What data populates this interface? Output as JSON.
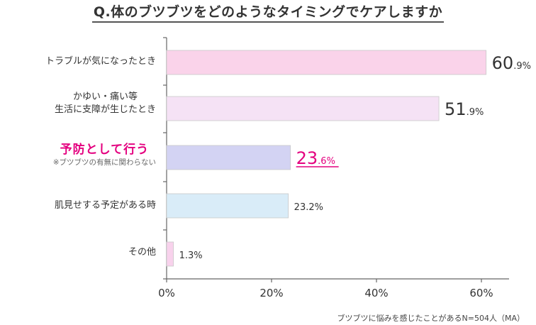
{
  "title": "Q.体のブツブツをどのようなタイミングでケアしますか",
  "footnote": "ブツブツに悩みを感じたことがあるN=504人（MA）",
  "colors": {
    "bar_0": "#fad3ea",
    "bar_1": "#f5e2f5",
    "bar_2": "#d3d3f3",
    "bar_3": "#d9ecf8",
    "bar_4": "#f8d2ec",
    "highlight": "#e4007f",
    "axis": "#666666",
    "text": "#333333"
  },
  "chart_data": {
    "type": "bar",
    "orientation": "horizontal",
    "title": "Q.体のブツブツをどのようなタイミングでケアしますか",
    "categories": [
      {
        "line1": "トラブルが気になったとき",
        "line2": ""
      },
      {
        "line1": "かゆい・痛い等",
        "line2": "生活に支障が生じたとき"
      },
      {
        "line1": "予防として行う",
        "line2": "※ブツブツの有無に関わらない"
      },
      {
        "line1": "肌見せする予定がある時",
        "line2": ""
      },
      {
        "line1": "その他",
        "line2": ""
      }
    ],
    "values": [
      60.9,
      51.9,
      23.6,
      23.2,
      1.3
    ],
    "value_labels": [
      {
        "main": "60",
        "decimal": ".9%"
      },
      {
        "main": "51",
        "decimal": ".9%"
      },
      {
        "main": "23",
        "decimal": ".6%"
      },
      {
        "main": "23.2%",
        "decimal": ""
      },
      {
        "main": "1.3%",
        "decimal": ""
      }
    ],
    "highlight_index": 2,
    "xlim": [
      0,
      65
    ],
    "x_ticks": [
      0,
      20,
      40,
      60
    ],
    "x_tick_labels": [
      "0%",
      "20%",
      "40%",
      "60%"
    ],
    "grid": false
  }
}
